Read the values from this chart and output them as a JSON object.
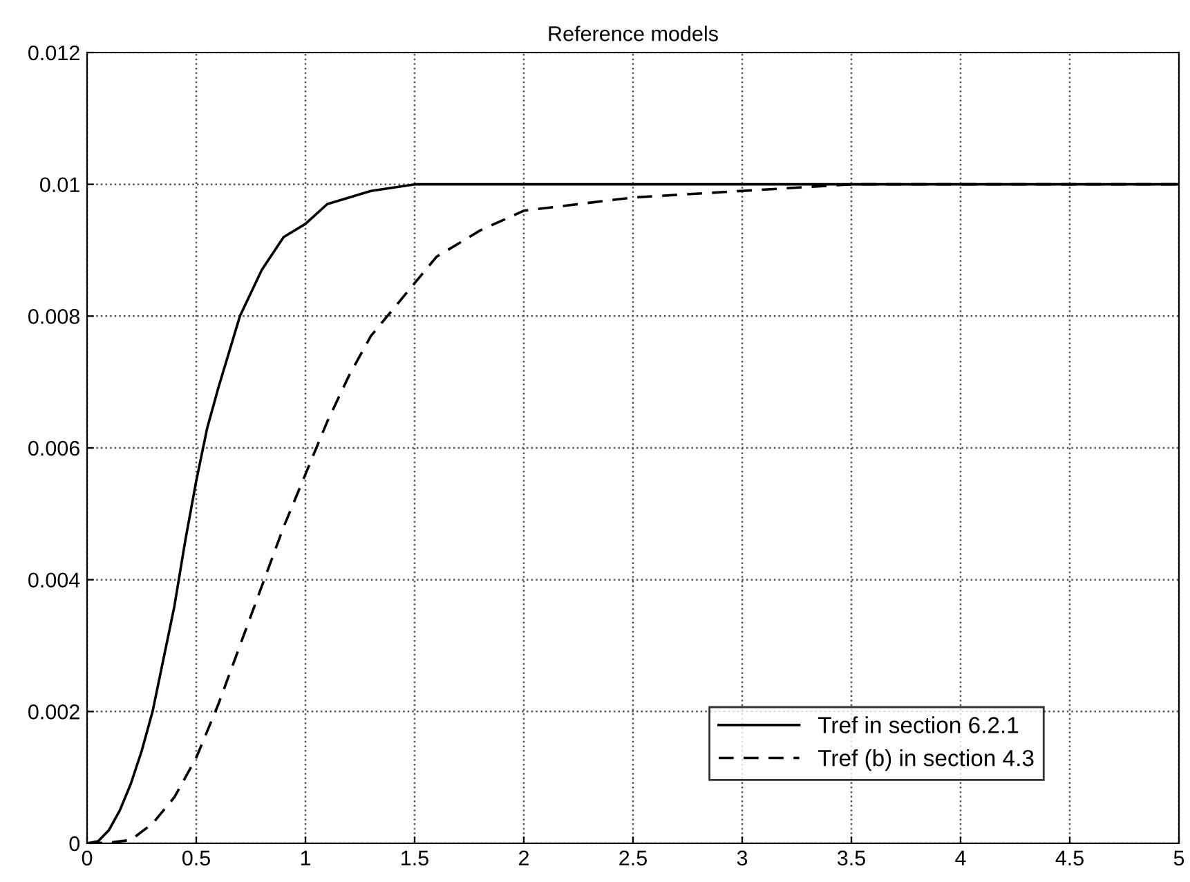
{
  "chart_data": {
    "type": "line",
    "title": "Reference models",
    "series": [
      {
        "name": "Tref in section 6.2.1",
        "color": "#000000",
        "line_style": "solid",
        "x": [
          0,
          0.05,
          0.1,
          0.15,
          0.2,
          0.25,
          0.3,
          0.35,
          0.4,
          0.45,
          0.5,
          0.55,
          0.6,
          0.7,
          0.8,
          0.9,
          1.0,
          1.1,
          1.2,
          1.3,
          1.4,
          1.5,
          1.6,
          2.0,
          3.0,
          4.0,
          5.0
        ],
        "values": [
          0,
          3e-05,
          0.0002,
          0.0005,
          0.0009,
          0.0014,
          0.002,
          0.0028,
          0.0036,
          0.0046,
          0.0055,
          0.0063,
          0.0069,
          0.008,
          0.0087,
          0.0092,
          0.0094,
          0.0097,
          0.0098,
          0.0099,
          0.00995,
          0.01,
          0.01,
          0.01,
          0.01,
          0.01,
          0.01
        ]
      },
      {
        "name": "Tref (b) in section 4.3",
        "color": "#000000",
        "line_style": "dashed",
        "x": [
          0,
          0.1,
          0.2,
          0.3,
          0.4,
          0.5,
          0.6,
          0.7,
          0.8,
          0.9,
          1.0,
          1.1,
          1.2,
          1.3,
          1.4,
          1.5,
          1.6,
          1.8,
          2.0,
          2.25,
          2.5,
          3.0,
          3.5,
          4.0,
          5.0
        ],
        "values": [
          0,
          1e-05,
          5e-05,
          0.0003,
          0.0007,
          0.0013,
          0.0021,
          0.003,
          0.0039,
          0.0048,
          0.0056,
          0.0064,
          0.0071,
          0.0077,
          0.0081,
          0.0085,
          0.0089,
          0.0093,
          0.0096,
          0.0097,
          0.0098,
          0.0099,
          0.01,
          0.01,
          0.01
        ]
      }
    ],
    "xlim": [
      0,
      5
    ],
    "xticks": [
      0,
      0.5,
      1,
      1.5,
      2,
      2.5,
      3,
      3.5,
      4,
      4.5,
      5
    ],
    "ylim": [
      0,
      0.012
    ],
    "yticks": [
      0,
      0.002,
      0.004,
      0.006,
      0.008,
      0.01,
      0.012
    ],
    "grid": true,
    "legend": "bottom right"
  }
}
